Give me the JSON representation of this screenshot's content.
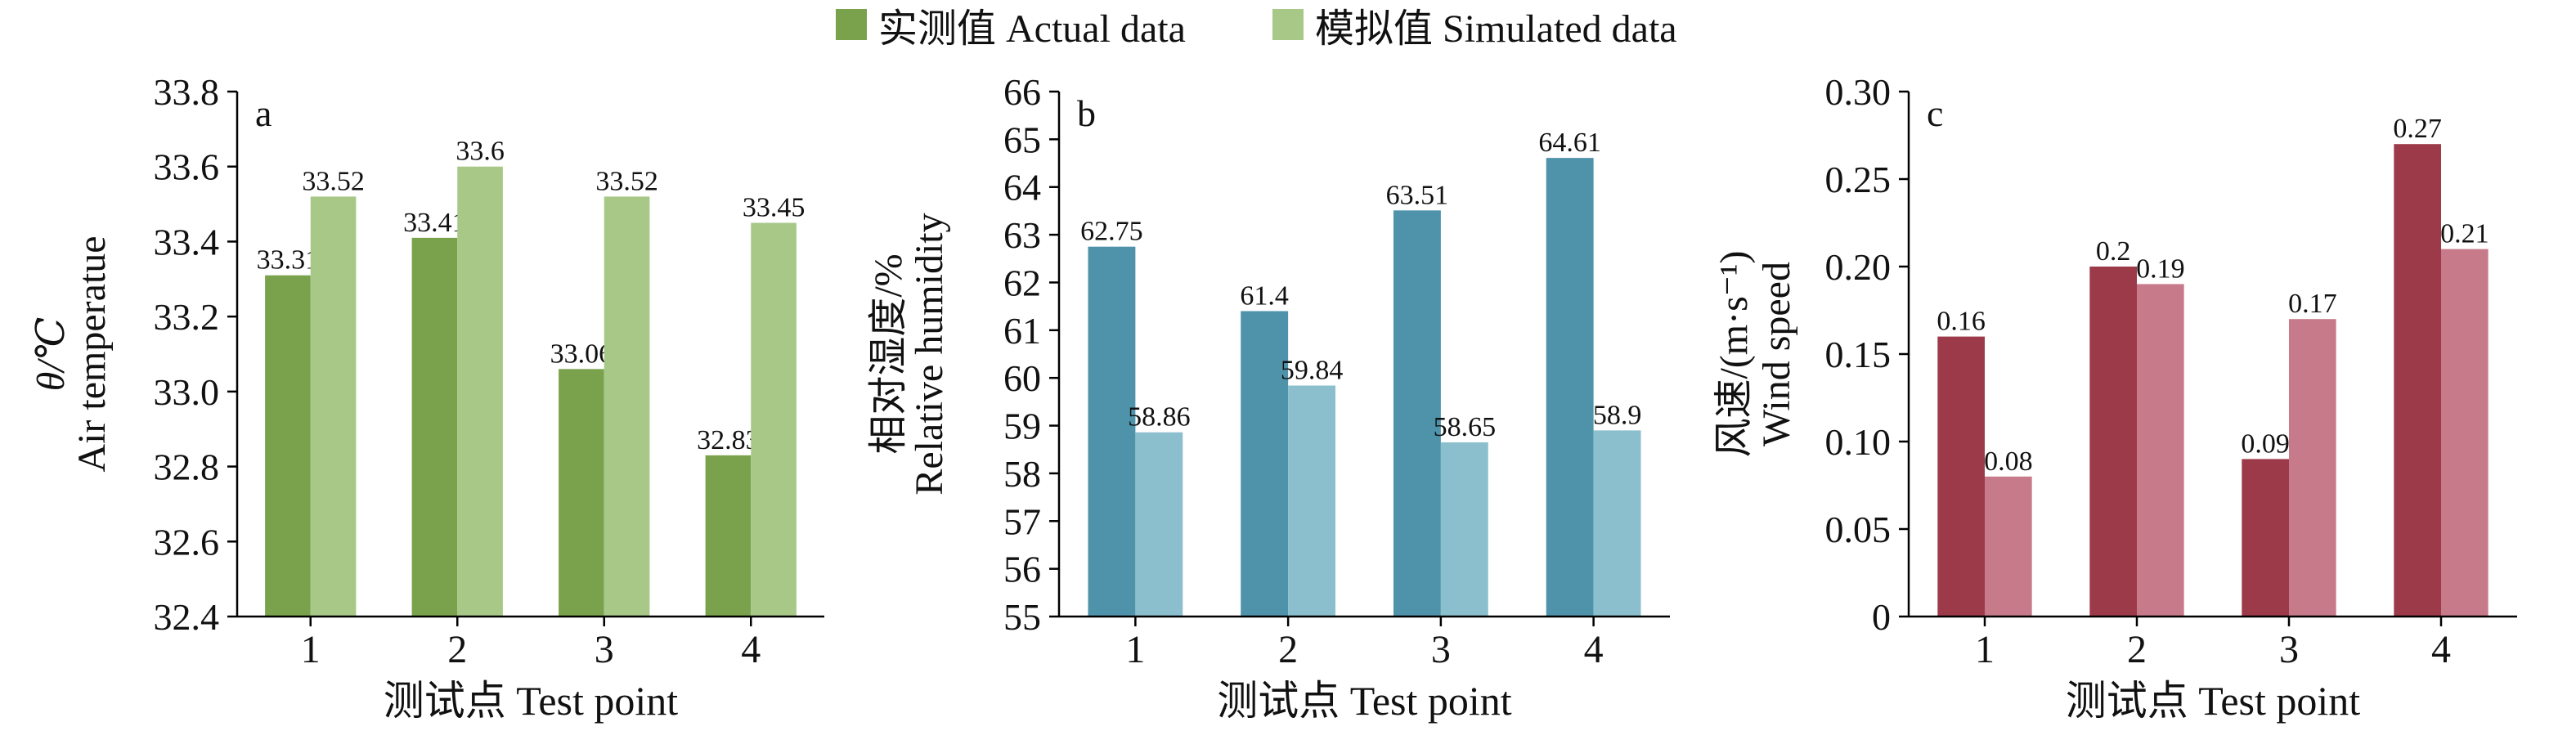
{
  "legend": {
    "actual": "实测值 Actual data",
    "simulated": "模拟值 Simulated data"
  },
  "colors": {
    "legend_actual": "#7aa24c",
    "legend_simulated": "#a8c888"
  },
  "chart_data": [
    {
      "type": "bar",
      "panel_label": "a",
      "categories": [
        "1",
        "2",
        "3",
        "4"
      ],
      "series": [
        {
          "name": "实测值 Actual data",
          "values": [
            33.31,
            33.41,
            33.06,
            32.83
          ],
          "color": "#7aa24c"
        },
        {
          "name": "模拟值 Simulated data",
          "values": [
            33.52,
            33.6,
            33.52,
            33.45
          ],
          "color": "#a8c888"
        }
      ],
      "data_labels": [
        [
          "33.31",
          "33.41",
          "33.06",
          "32.83"
        ],
        [
          "33.52",
          "33.6",
          "33.52",
          "33.45"
        ]
      ],
      "ylim": [
        32.4,
        33.8
      ],
      "yticks": [
        "32.4",
        "32.6",
        "32.8",
        "33.0",
        "33.2",
        "33.4",
        "33.6",
        "33.8"
      ],
      "ylabel": [
        "θ/℃",
        "Air temperatue"
      ],
      "xlabel": "测试点 Test point",
      "grid": false
    },
    {
      "type": "bar",
      "panel_label": "b",
      "categories": [
        "1",
        "2",
        "3",
        "4"
      ],
      "series": [
        {
          "name": "实测值 Actual data",
          "values": [
            62.75,
            61.4,
            63.51,
            64.61
          ],
          "color": "#4f93aa"
        },
        {
          "name": "模拟值 Simulated data",
          "values": [
            58.86,
            59.84,
            58.65,
            58.9
          ],
          "color": "#8bbfce"
        }
      ],
      "data_labels": [
        [
          "62.75",
          "61.4",
          "63.51",
          "64.61"
        ],
        [
          "58.86",
          "59.84",
          "58.65",
          "58.9"
        ]
      ],
      "ylim": [
        55,
        66
      ],
      "yticks": [
        "55",
        "56",
        "57",
        "58",
        "59",
        "60",
        "61",
        "62",
        "63",
        "64",
        "65",
        "66"
      ],
      "ylabel": [
        "相对湿度/%",
        "Relative humidity"
      ],
      "xlabel": "测试点 Test point",
      "grid": false
    },
    {
      "type": "bar",
      "panel_label": "c",
      "categories": [
        "1",
        "2",
        "3",
        "4"
      ],
      "series": [
        {
          "name": "实测值 Actual data",
          "values": [
            0.16,
            0.2,
            0.09,
            0.27
          ],
          "color": "#9c3a4a"
        },
        {
          "name": "模拟值 Simulated data",
          "values": [
            0.08,
            0.19,
            0.17,
            0.21
          ],
          "color": "#c77b8a"
        }
      ],
      "data_labels": [
        [
          "0.16",
          "0.2",
          "0.09",
          "0.27"
        ],
        [
          "0.08",
          "0.19",
          "0.17",
          "0.21"
        ]
      ],
      "ylim": [
        0,
        0.3
      ],
      "yticks": [
        "0",
        "0.05",
        "0.10",
        "0.15",
        "0.20",
        "0.25",
        "0.30"
      ],
      "ylabel": [
        "风速/(m·s⁻¹)",
        "Wind speed"
      ],
      "xlabel": "测试点 Test point",
      "grid": false
    }
  ]
}
